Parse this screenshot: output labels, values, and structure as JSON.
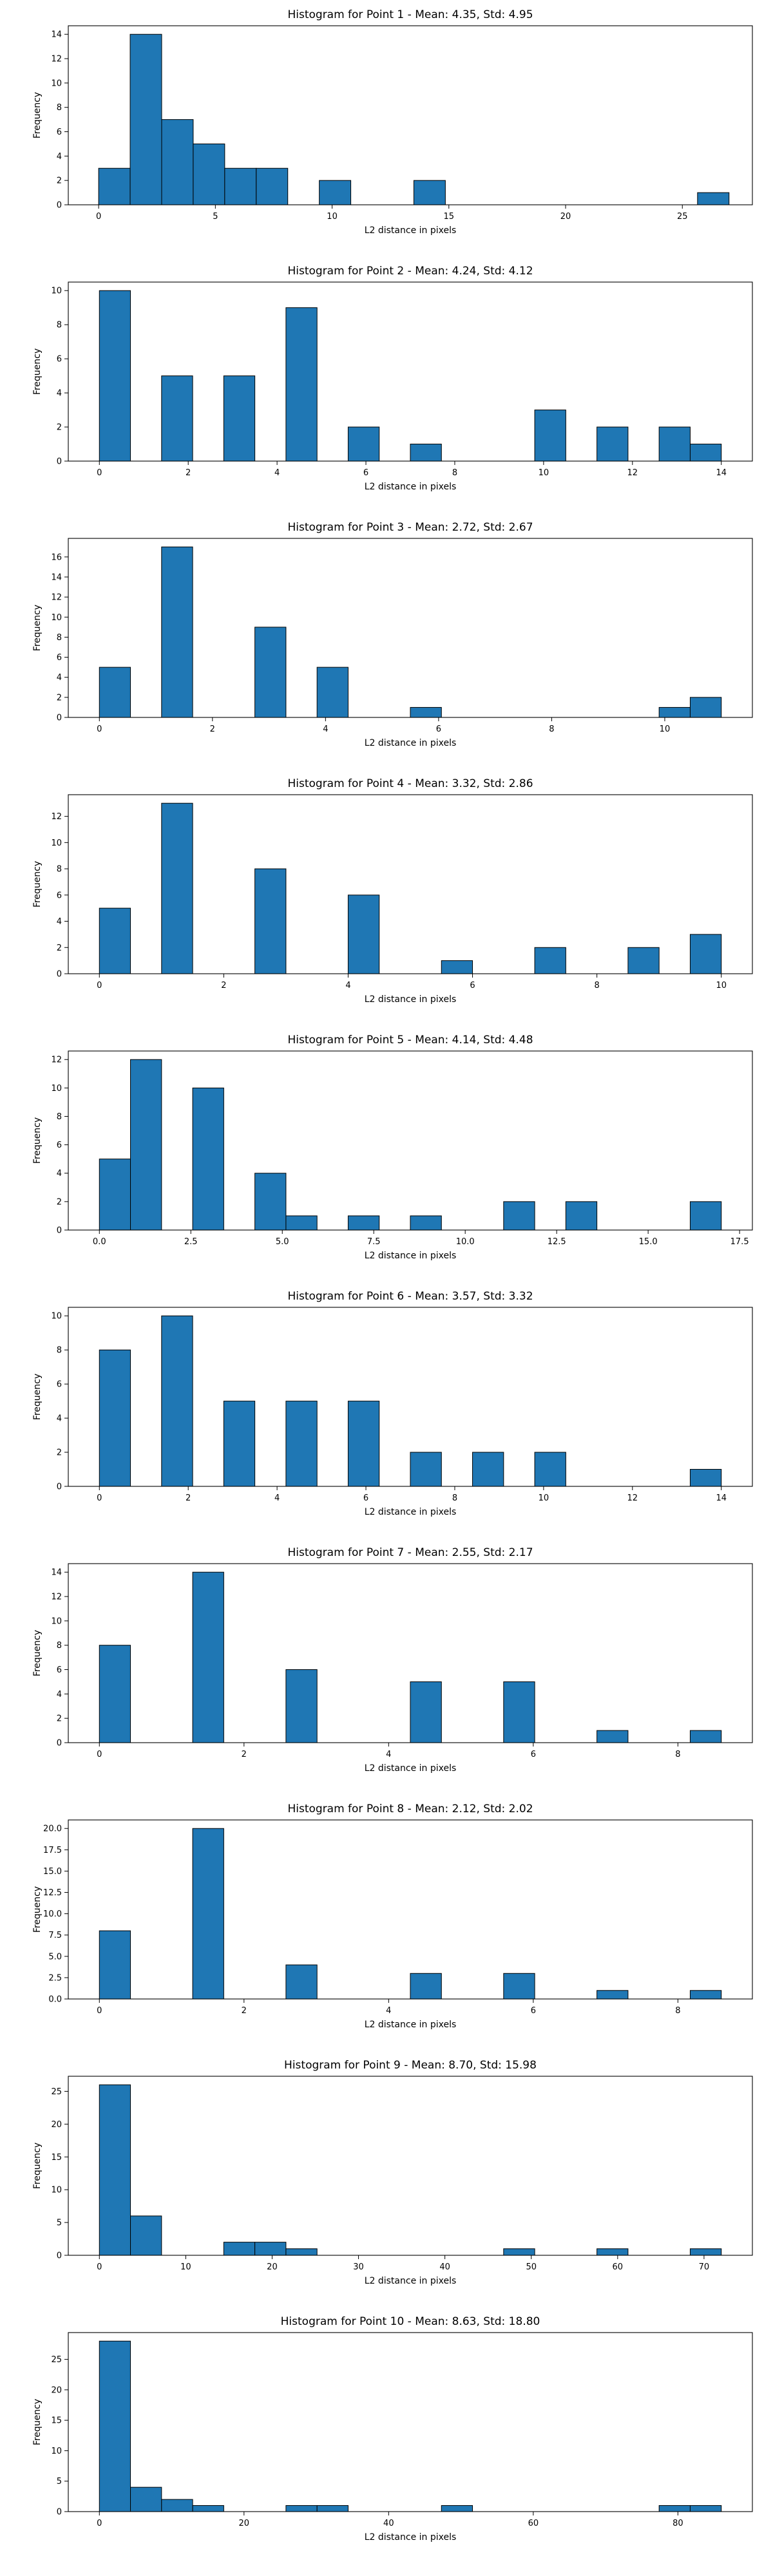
{
  "colors": {
    "bar": "#1f77b4",
    "edge": "#000000",
    "axis": "#000000",
    "text": "#000000"
  },
  "chart_data": [
    {
      "type": "bar",
      "title": "Histogram for Point 1 - Mean: 4.35, Std: 4.95",
      "xlabel": "L2 distance in pixels",
      "ylabel": "Frequency",
      "xlim": [
        -1.3,
        28.0
      ],
      "ylim": [
        0,
        14.7
      ],
      "xticks": [
        0,
        5,
        10,
        15,
        20,
        25
      ],
      "yticks": [
        0,
        2,
        4,
        6,
        8,
        10,
        12,
        14
      ],
      "ytick_labels": [
        "0",
        "2",
        "4",
        "6",
        "8",
        "10",
        "12",
        "14"
      ],
      "bins": [
        {
          "x0": 0.0,
          "x1": 1.35,
          "value": 3
        },
        {
          "x0": 1.35,
          "x1": 2.7,
          "value": 14
        },
        {
          "x0": 2.7,
          "x1": 4.05,
          "value": 7
        },
        {
          "x0": 4.05,
          "x1": 5.4,
          "value": 5
        },
        {
          "x0": 5.4,
          "x1": 6.75,
          "value": 3
        },
        {
          "x0": 6.75,
          "x1": 8.1,
          "value": 3
        },
        {
          "x0": 9.45,
          "x1": 10.8,
          "value": 2
        },
        {
          "x0": 13.5,
          "x1": 14.85,
          "value": 2
        },
        {
          "x0": 25.65,
          "x1": 27.0,
          "value": 1
        }
      ]
    },
    {
      "type": "bar",
      "title": "Histogram for Point 2 - Mean: 4.24, Std: 4.12",
      "xlabel": "L2 distance in pixels",
      "ylabel": "Frequency",
      "xlim": [
        -0.7,
        14.7
      ],
      "ylim": [
        0,
        10.5
      ],
      "xticks": [
        0,
        2,
        4,
        6,
        8,
        10,
        12,
        14
      ],
      "yticks": [
        0,
        2,
        4,
        6,
        8,
        10
      ],
      "ytick_labels": [
        "0",
        "2",
        "4",
        "6",
        "8",
        "10"
      ],
      "bins": [
        {
          "x0": 0.0,
          "x1": 0.7,
          "value": 10
        },
        {
          "x0": 1.4,
          "x1": 2.1,
          "value": 5
        },
        {
          "x0": 2.8,
          "x1": 3.5,
          "value": 5
        },
        {
          "x0": 4.2,
          "x1": 4.9,
          "value": 9
        },
        {
          "x0": 5.6,
          "x1": 6.3,
          "value": 2
        },
        {
          "x0": 7.0,
          "x1": 7.7,
          "value": 1
        },
        {
          "x0": 9.8,
          "x1": 10.5,
          "value": 3
        },
        {
          "x0": 11.2,
          "x1": 11.9,
          "value": 2
        },
        {
          "x0": 12.6,
          "x1": 13.3,
          "value": 2
        },
        {
          "x0": 13.3,
          "x1": 14.0,
          "value": 1
        }
      ]
    },
    {
      "type": "bar",
      "title": "Histogram for Point 3 - Mean: 2.72, Std: 2.67",
      "xlabel": "L2 distance in pixels",
      "ylabel": "Frequency",
      "xlim": [
        -0.55,
        11.55
      ],
      "ylim": [
        0,
        17.85
      ],
      "xticks": [
        0,
        2,
        4,
        6,
        8,
        10
      ],
      "yticks": [
        0,
        2,
        4,
        6,
        8,
        10,
        12,
        14,
        16
      ],
      "ytick_labels": [
        "0",
        "2",
        "4",
        "6",
        "8",
        "10",
        "12",
        "14",
        "16"
      ],
      "bins": [
        {
          "x0": 0.0,
          "x1": 0.55,
          "value": 5
        },
        {
          "x0": 1.1,
          "x1": 1.65,
          "value": 17
        },
        {
          "x0": 2.75,
          "x1": 3.3,
          "value": 9
        },
        {
          "x0": 3.85,
          "x1": 4.4,
          "value": 5
        },
        {
          "x0": 5.5,
          "x1": 6.05,
          "value": 1
        },
        {
          "x0": 9.9,
          "x1": 10.45,
          "value": 1
        },
        {
          "x0": 10.45,
          "x1": 11.0,
          "value": 2
        }
      ]
    },
    {
      "type": "bar",
      "title": "Histogram for Point 4 - Mean: 3.32, Std: 2.86",
      "xlabel": "L2 distance in pixels",
      "ylabel": "Frequency",
      "xlim": [
        -0.5,
        10.5
      ],
      "ylim": [
        0,
        13.65
      ],
      "xticks": [
        0,
        2,
        4,
        6,
        8,
        10
      ],
      "yticks": [
        0,
        2,
        4,
        6,
        8,
        10,
        12
      ],
      "ytick_labels": [
        "0",
        "2",
        "4",
        "6",
        "8",
        "10",
        "12"
      ],
      "bins": [
        {
          "x0": 0.0,
          "x1": 0.5,
          "value": 5
        },
        {
          "x0": 1.0,
          "x1": 1.5,
          "value": 13
        },
        {
          "x0": 2.5,
          "x1": 3.0,
          "value": 8
        },
        {
          "x0": 4.0,
          "x1": 4.5,
          "value": 6
        },
        {
          "x0": 5.5,
          "x1": 6.0,
          "value": 1
        },
        {
          "x0": 7.0,
          "x1": 7.5,
          "value": 2
        },
        {
          "x0": 8.5,
          "x1": 9.0,
          "value": 2
        },
        {
          "x0": 9.5,
          "x1": 10.0,
          "value": 3
        }
      ]
    },
    {
      "type": "bar",
      "title": "Histogram for Point 5 - Mean: 4.14, Std: 4.48",
      "xlabel": "L2 distance in pixels",
      "ylabel": "Frequency",
      "xlim": [
        -0.85,
        17.85
      ],
      "ylim": [
        0,
        12.6
      ],
      "xticks": [
        0.0,
        2.5,
        5.0,
        7.5,
        10.0,
        12.5,
        15.0,
        17.5
      ],
      "xtick_labels": [
        "0.0",
        "2.5",
        "5.0",
        "7.5",
        "10.0",
        "12.5",
        "15.0",
        "17.5"
      ],
      "yticks": [
        0,
        2,
        4,
        6,
        8,
        10,
        12
      ],
      "ytick_labels": [
        "0",
        "2",
        "4",
        "6",
        "8",
        "10",
        "12"
      ],
      "bins": [
        {
          "x0": 0.0,
          "x1": 0.85,
          "value": 5
        },
        {
          "x0": 0.85,
          "x1": 1.7,
          "value": 12
        },
        {
          "x0": 2.55,
          "x1": 3.4,
          "value": 10
        },
        {
          "x0": 4.25,
          "x1": 5.1,
          "value": 4
        },
        {
          "x0": 5.1,
          "x1": 5.95,
          "value": 1
        },
        {
          "x0": 6.8,
          "x1": 7.65,
          "value": 1
        },
        {
          "x0": 8.5,
          "x1": 9.35,
          "value": 1
        },
        {
          "x0": 11.05,
          "x1": 11.9,
          "value": 2
        },
        {
          "x0": 12.75,
          "x1": 13.6,
          "value": 2
        },
        {
          "x0": 16.15,
          "x1": 17.0,
          "value": 2
        }
      ]
    },
    {
      "type": "bar",
      "title": "Histogram for Point 6 - Mean: 3.57, Std: 3.32",
      "xlabel": "L2 distance in pixels",
      "ylabel": "Frequency",
      "xlim": [
        -0.7,
        14.7
      ],
      "ylim": [
        0,
        10.5
      ],
      "xticks": [
        0,
        2,
        4,
        6,
        8,
        10,
        12,
        14
      ],
      "yticks": [
        0,
        2,
        4,
        6,
        8,
        10
      ],
      "ytick_labels": [
        "0",
        "2",
        "4",
        "6",
        "8",
        "10"
      ],
      "bins": [
        {
          "x0": 0.0,
          "x1": 0.7,
          "value": 8
        },
        {
          "x0": 1.4,
          "x1": 2.1,
          "value": 10
        },
        {
          "x0": 2.8,
          "x1": 3.5,
          "value": 5
        },
        {
          "x0": 4.2,
          "x1": 4.9,
          "value": 5
        },
        {
          "x0": 5.6,
          "x1": 6.3,
          "value": 5
        },
        {
          "x0": 7.0,
          "x1": 7.7,
          "value": 2
        },
        {
          "x0": 8.4,
          "x1": 9.1,
          "value": 2
        },
        {
          "x0": 9.8,
          "x1": 10.5,
          "value": 2
        },
        {
          "x0": 13.3,
          "x1": 14.0,
          "value": 1
        }
      ]
    },
    {
      "type": "bar",
      "title": "Histogram for Point 7 - Mean: 2.55, Std: 2.17",
      "xlabel": "L2 distance in pixels",
      "ylabel": "Frequency",
      "xlim": [
        -0.43,
        9.03
      ],
      "ylim": [
        0,
        14.7
      ],
      "xticks": [
        0,
        2,
        4,
        6,
        8
      ],
      "yticks": [
        0,
        2,
        4,
        6,
        8,
        10,
        12,
        14
      ],
      "ytick_labels": [
        "0",
        "2",
        "4",
        "6",
        "8",
        "10",
        "12",
        "14"
      ],
      "bins": [
        {
          "x0": 0.0,
          "x1": 0.43,
          "value": 8
        },
        {
          "x0": 1.29,
          "x1": 1.72,
          "value": 14
        },
        {
          "x0": 2.58,
          "x1": 3.01,
          "value": 6
        },
        {
          "x0": 4.3,
          "x1": 4.73,
          "value": 5
        },
        {
          "x0": 5.59,
          "x1": 6.02,
          "value": 5
        },
        {
          "x0": 6.88,
          "x1": 7.31,
          "value": 1
        },
        {
          "x0": 8.17,
          "x1": 8.6,
          "value": 1
        }
      ]
    },
    {
      "type": "bar",
      "title": "Histogram for Point 8 - Mean: 2.12, Std: 2.02",
      "xlabel": "L2 distance in pixels",
      "ylabel": "Frequency",
      "xlim": [
        -0.43,
        9.03
      ],
      "ylim": [
        0,
        21.0
      ],
      "xticks": [
        0,
        2,
        4,
        6,
        8
      ],
      "yticks": [
        0,
        2.5,
        5,
        7.5,
        10,
        12.5,
        15,
        17.5,
        20
      ],
      "ytick_labels": [
        "0.0",
        "2.5",
        "5.0",
        "7.5",
        "10.0",
        "12.5",
        "15.0",
        "17.5",
        "20.0"
      ],
      "bins": [
        {
          "x0": 0.0,
          "x1": 0.43,
          "value": 8
        },
        {
          "x0": 1.29,
          "x1": 1.72,
          "value": 20
        },
        {
          "x0": 2.58,
          "x1": 3.01,
          "value": 4
        },
        {
          "x0": 4.3,
          "x1": 4.73,
          "value": 3
        },
        {
          "x0": 5.59,
          "x1": 6.02,
          "value": 3
        },
        {
          "x0": 6.88,
          "x1": 7.31,
          "value": 1
        },
        {
          "x0": 8.17,
          "x1": 8.6,
          "value": 1
        }
      ]
    },
    {
      "type": "bar",
      "title": "Histogram for Point 9 - Mean: 8.70, Std: 15.98",
      "xlabel": "L2 distance in pixels",
      "ylabel": "Frequency",
      "xlim": [
        -3.6,
        75.6
      ],
      "ylim": [
        0,
        27.3
      ],
      "xticks": [
        0,
        10,
        20,
        30,
        40,
        50,
        60,
        70
      ],
      "yticks": [
        0,
        5,
        10,
        15,
        20,
        25
      ],
      "ytick_labels": [
        "0",
        "5",
        "10",
        "15",
        "20",
        "25"
      ],
      "bins": [
        {
          "x0": 0.0,
          "x1": 3.6,
          "value": 26
        },
        {
          "x0": 3.6,
          "x1": 7.2,
          "value": 6
        },
        {
          "x0": 14.4,
          "x1": 18.0,
          "value": 2
        },
        {
          "x0": 18.0,
          "x1": 21.6,
          "value": 2
        },
        {
          "x0": 21.6,
          "x1": 25.2,
          "value": 1
        },
        {
          "x0": 46.8,
          "x1": 50.4,
          "value": 1
        },
        {
          "x0": 57.6,
          "x1": 61.2,
          "value": 1
        },
        {
          "x0": 68.4,
          "x1": 72.0,
          "value": 1
        }
      ]
    },
    {
      "type": "bar",
      "title": "Histogram for Point 10 - Mean: 8.63, Std: 18.80",
      "xlabel": "L2 distance in pixels",
      "ylabel": "Frequency",
      "xlim": [
        -4.3,
        90.3
      ],
      "ylim": [
        0,
        29.4
      ],
      "xticks": [
        0,
        20,
        40,
        60,
        80
      ],
      "yticks": [
        0,
        5,
        10,
        15,
        20,
        25
      ],
      "ytick_labels": [
        "0",
        "5",
        "10",
        "15",
        "20",
        "25"
      ],
      "bins": [
        {
          "x0": 0.0,
          "x1": 4.3,
          "value": 28
        },
        {
          "x0": 4.3,
          "x1": 8.6,
          "value": 4
        },
        {
          "x0": 8.6,
          "x1": 12.9,
          "value": 2
        },
        {
          "x0": 12.9,
          "x1": 17.2,
          "value": 1
        },
        {
          "x0": 25.8,
          "x1": 30.1,
          "value": 1
        },
        {
          "x0": 30.1,
          "x1": 34.4,
          "value": 1
        },
        {
          "x0": 47.3,
          "x1": 51.6,
          "value": 1
        },
        {
          "x0": 77.4,
          "x1": 81.7,
          "value": 1
        },
        {
          "x0": 81.7,
          "x1": 86.0,
          "value": 1
        }
      ]
    }
  ]
}
